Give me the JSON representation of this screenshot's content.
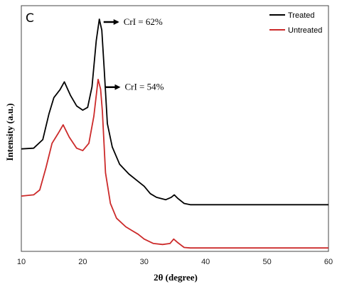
{
  "chart_data": {
    "type": "line",
    "panel_label": "C",
    "xlabel": "2θ (degree)",
    "ylabel": "Intensity (a.u.)",
    "xlim": [
      10,
      60
    ],
    "ylim": [
      0,
      100
    ],
    "x_ticks": [
      "10",
      "20",
      "30",
      "40",
      "50",
      "60"
    ],
    "y_ticks_shown": false,
    "legend_position": "top-right",
    "series": [
      {
        "name": "Treated",
        "color": "#000000",
        "points": [
          [
            10,
            41.7
          ],
          [
            12,
            42.0
          ],
          [
            13.5,
            45.5
          ],
          [
            14.5,
            56.0
          ],
          [
            15.3,
            62.6
          ],
          [
            16.3,
            65.8
          ],
          [
            17.0,
            69.0
          ],
          [
            18.0,
            63.5
          ],
          [
            19.0,
            59.2
          ],
          [
            20.0,
            57.5
          ],
          [
            20.8,
            58.6
          ],
          [
            21.5,
            67.0
          ],
          [
            22.2,
            85.8
          ],
          [
            22.7,
            94.5
          ],
          [
            23.1,
            90.0
          ],
          [
            23.5,
            74.0
          ],
          [
            24.0,
            52.0
          ],
          [
            24.8,
            42.5
          ],
          [
            26.0,
            35.5
          ],
          [
            27.5,
            31.5
          ],
          [
            29.0,
            28.5
          ],
          [
            30.0,
            26.5
          ],
          [
            31.0,
            23.5
          ],
          [
            32.0,
            22.0
          ],
          [
            33.5,
            21.0
          ],
          [
            34.4,
            22.0
          ],
          [
            34.9,
            23.0
          ],
          [
            35.5,
            21.5
          ],
          [
            36.5,
            19.5
          ],
          [
            37.5,
            19.0
          ],
          [
            40,
            19.0
          ],
          [
            50,
            19.0
          ],
          [
            60,
            19.0
          ]
        ]
      },
      {
        "name": "Untreated",
        "color": "#cc2a2a",
        "points": [
          [
            10,
            22.5
          ],
          [
            12,
            23.0
          ],
          [
            13.0,
            25.0
          ],
          [
            14.0,
            34.0
          ],
          [
            15.0,
            44.0
          ],
          [
            16.0,
            48.0
          ],
          [
            16.8,
            51.5
          ],
          [
            17.8,
            46.5
          ],
          [
            19.0,
            42.0
          ],
          [
            20.0,
            41.0
          ],
          [
            21.0,
            44.0
          ],
          [
            21.8,
            55.0
          ],
          [
            22.5,
            70.0
          ],
          [
            22.9,
            66.0
          ],
          [
            23.2,
            57.0
          ],
          [
            23.7,
            32.0
          ],
          [
            24.5,
            19.5
          ],
          [
            25.5,
            13.5
          ],
          [
            27.0,
            10.0
          ],
          [
            28.0,
            8.5
          ],
          [
            29.0,
            7.0
          ],
          [
            30.0,
            5.0
          ],
          [
            31.5,
            3.2
          ],
          [
            33.0,
            2.8
          ],
          [
            34.2,
            3.2
          ],
          [
            34.8,
            5.0
          ],
          [
            35.5,
            3.5
          ],
          [
            36.5,
            1.6
          ],
          [
            37.5,
            1.4
          ],
          [
            40,
            1.4
          ],
          [
            50,
            1.4
          ],
          [
            60,
            1.4
          ]
        ]
      }
    ],
    "annotations": [
      {
        "text": "CrI = 62%",
        "x": 22.7,
        "y": 94.5,
        "series": "Treated"
      },
      {
        "text": "CrI = 54%",
        "x": 22.9,
        "y": 68.0,
        "series": "Untreated"
      }
    ]
  }
}
